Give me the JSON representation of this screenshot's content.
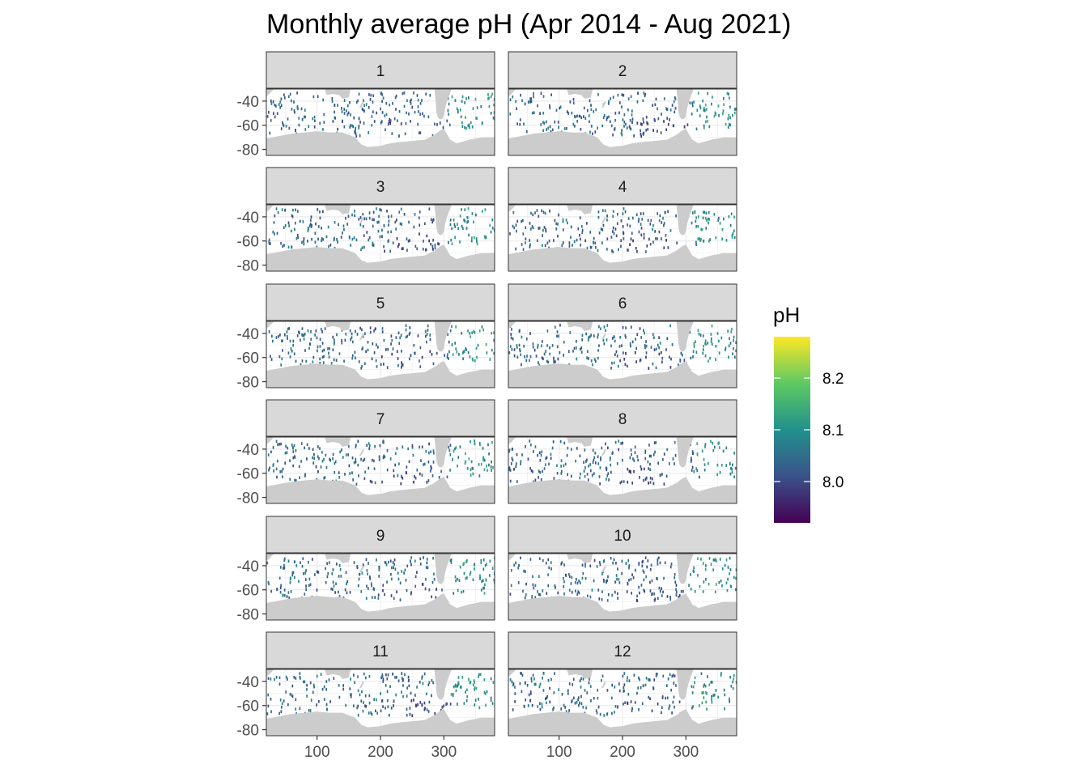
{
  "chart_data": {
    "type": "heatmap",
    "title": "Monthly average pH (Apr 2014 - Aug 2021)",
    "xlabel": "",
    "ylabel": "",
    "facet_labels": [
      "1",
      "2",
      "3",
      "4",
      "5",
      "6",
      "7",
      "8",
      "9",
      "10",
      "11",
      "12"
    ],
    "facet_layout": {
      "columns": 2,
      "rows": 6
    },
    "x_ticks": [
      100,
      200,
      300
    ],
    "x_tick_labels": [
      "100",
      "200",
      "300"
    ],
    "y_ticks": [
      -40,
      -60,
      -80
    ],
    "y_tick_labels": [
      "-40",
      "-60",
      "-80"
    ],
    "xlim": [
      20,
      380
    ],
    "ylim": [
      -85,
      -30
    ],
    "grid": true,
    "legend": {
      "title": "pH",
      "position": "right",
      "breaks": [
        8.0,
        8.1,
        8.2
      ],
      "break_labels": [
        "8.0",
        "8.1",
        "8.2"
      ],
      "range": [
        7.92,
        8.28
      ],
      "palette": "viridis",
      "colors": [
        "#440154",
        "#3b528b",
        "#21918c",
        "#5ec962",
        "#fde725"
      ]
    },
    "land_color": "#cccccc",
    "panel_background": "#ffffff",
    "strip_background": "#d9d9d9",
    "cells": [
      {
        "month": 1,
        "lon": 215,
        "lat": -55,
        "pH": 8.03
      },
      {
        "month": 1,
        "lon": 345,
        "lat": -45,
        "pH": 8.12
      },
      {
        "month": 1,
        "lon": 95,
        "lat": -52,
        "pH": 8.06
      },
      {
        "month": 2,
        "lon": 330,
        "lat": -42,
        "pH": 8.15
      },
      {
        "month": 2,
        "lon": 250,
        "lat": -55,
        "pH": 8.02
      },
      {
        "month": 3,
        "lon": 320,
        "lat": -45,
        "pH": 8.1
      },
      {
        "month": 3,
        "lon": 180,
        "lat": -58,
        "pH": 8.05
      },
      {
        "month": 4,
        "lon": 330,
        "lat": -40,
        "pH": 8.14
      },
      {
        "month": 4,
        "lon": 260,
        "lat": -57,
        "pH": 8.01
      },
      {
        "month": 5,
        "lon": 300,
        "lat": -57,
        "pH": 8.03
      },
      {
        "month": 5,
        "lon": 100,
        "lat": -50,
        "pH": 8.07
      },
      {
        "month": 6,
        "lon": 330,
        "lat": -45,
        "pH": 8.12
      },
      {
        "month": 6,
        "lon": 200,
        "lat": -55,
        "pH": 8.04
      },
      {
        "month": 7,
        "lon": 210,
        "lat": -56,
        "pH": 8.05
      },
      {
        "month": 7,
        "lon": 120,
        "lat": -48,
        "pH": 8.02
      },
      {
        "month": 8,
        "lon": 320,
        "lat": -62,
        "pH": 8.0
      },
      {
        "month": 8,
        "lon": 180,
        "lat": -52,
        "pH": 8.06
      },
      {
        "month": 9,
        "lon": 320,
        "lat": -50,
        "pH": 8.03
      },
      {
        "month": 9,
        "lon": 170,
        "lat": -45,
        "pH": 8.09
      },
      {
        "month": 10,
        "lon": 330,
        "lat": -42,
        "pH": 8.13
      },
      {
        "month": 10,
        "lon": 190,
        "lat": -50,
        "pH": 8.07
      },
      {
        "month": 11,
        "lon": 340,
        "lat": -40,
        "pH": 8.11
      },
      {
        "month": 11,
        "lon": 220,
        "lat": -55,
        "pH": 8.05
      },
      {
        "month": 12,
        "lon": 330,
        "lat": -48,
        "pH": 8.16
      },
      {
        "month": 12,
        "lon": 240,
        "lat": -52,
        "pH": 8.04
      }
    ]
  }
}
